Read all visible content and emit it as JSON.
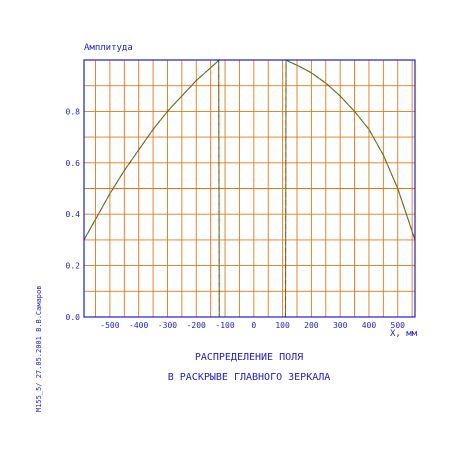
{
  "chart_data": {
    "type": "line",
    "ylabel": "Амплитуда",
    "xlabel": "X,  мм",
    "xlim": [
      -590,
      560
    ],
    "ylim": [
      0,
      1.0
    ],
    "x_ticks": [
      -500,
      -400,
      -300,
      -200,
      -100,
      0,
      100,
      200,
      300,
      400,
      500
    ],
    "x_tick_labels": [
      "-500",
      "-400",
      "-300",
      "-200",
      "-100",
      "0",
      "100",
      "200",
      "300",
      "400",
      "500"
    ],
    "y_ticks": [
      0.0,
      0.2,
      0.4,
      0.6,
      0.8
    ],
    "y_tick_labels": [
      "0.0",
      "0.2",
      "0.4",
      "0.6",
      "0.8"
    ],
    "grid": true,
    "caption_lines": [
      "РАСПРЕДЕЛЕНИЕ ПОЛЯ",
      "В РАСКРЫВЕ ГЛАВНОГО ЗЕРКАЛА"
    ],
    "side_note": "М155_5/  27.05.2001  В.В.Самаров",
    "colors": {
      "axes": "#1f1fc8",
      "grid": "#e0781e",
      "series_a": "#e01e1e",
      "series_b": "#1ea01e"
    },
    "series": [
      {
        "x": [
          -590,
          -550,
          -500,
          -450,
          -400,
          -350,
          -300,
          -250,
          -200,
          -170,
          -150,
          -130,
          -122,
          -121,
          -120
        ],
        "y": [
          0.3,
          0.38,
          0.48,
          0.57,
          0.65,
          0.73,
          0.8,
          0.86,
          0.92,
          0.95,
          0.97,
          0.99,
          1.0,
          0.5,
          0.0
        ]
      },
      {
        "x": [
          110,
          111,
          112,
          130,
          150,
          200,
          250,
          300,
          350,
          400,
          450,
          500,
          530,
          560
        ],
        "y": [
          0.0,
          0.5,
          1.0,
          0.99,
          0.98,
          0.95,
          0.91,
          0.86,
          0.8,
          0.73,
          0.63,
          0.5,
          0.4,
          0.3
        ]
      }
    ]
  }
}
